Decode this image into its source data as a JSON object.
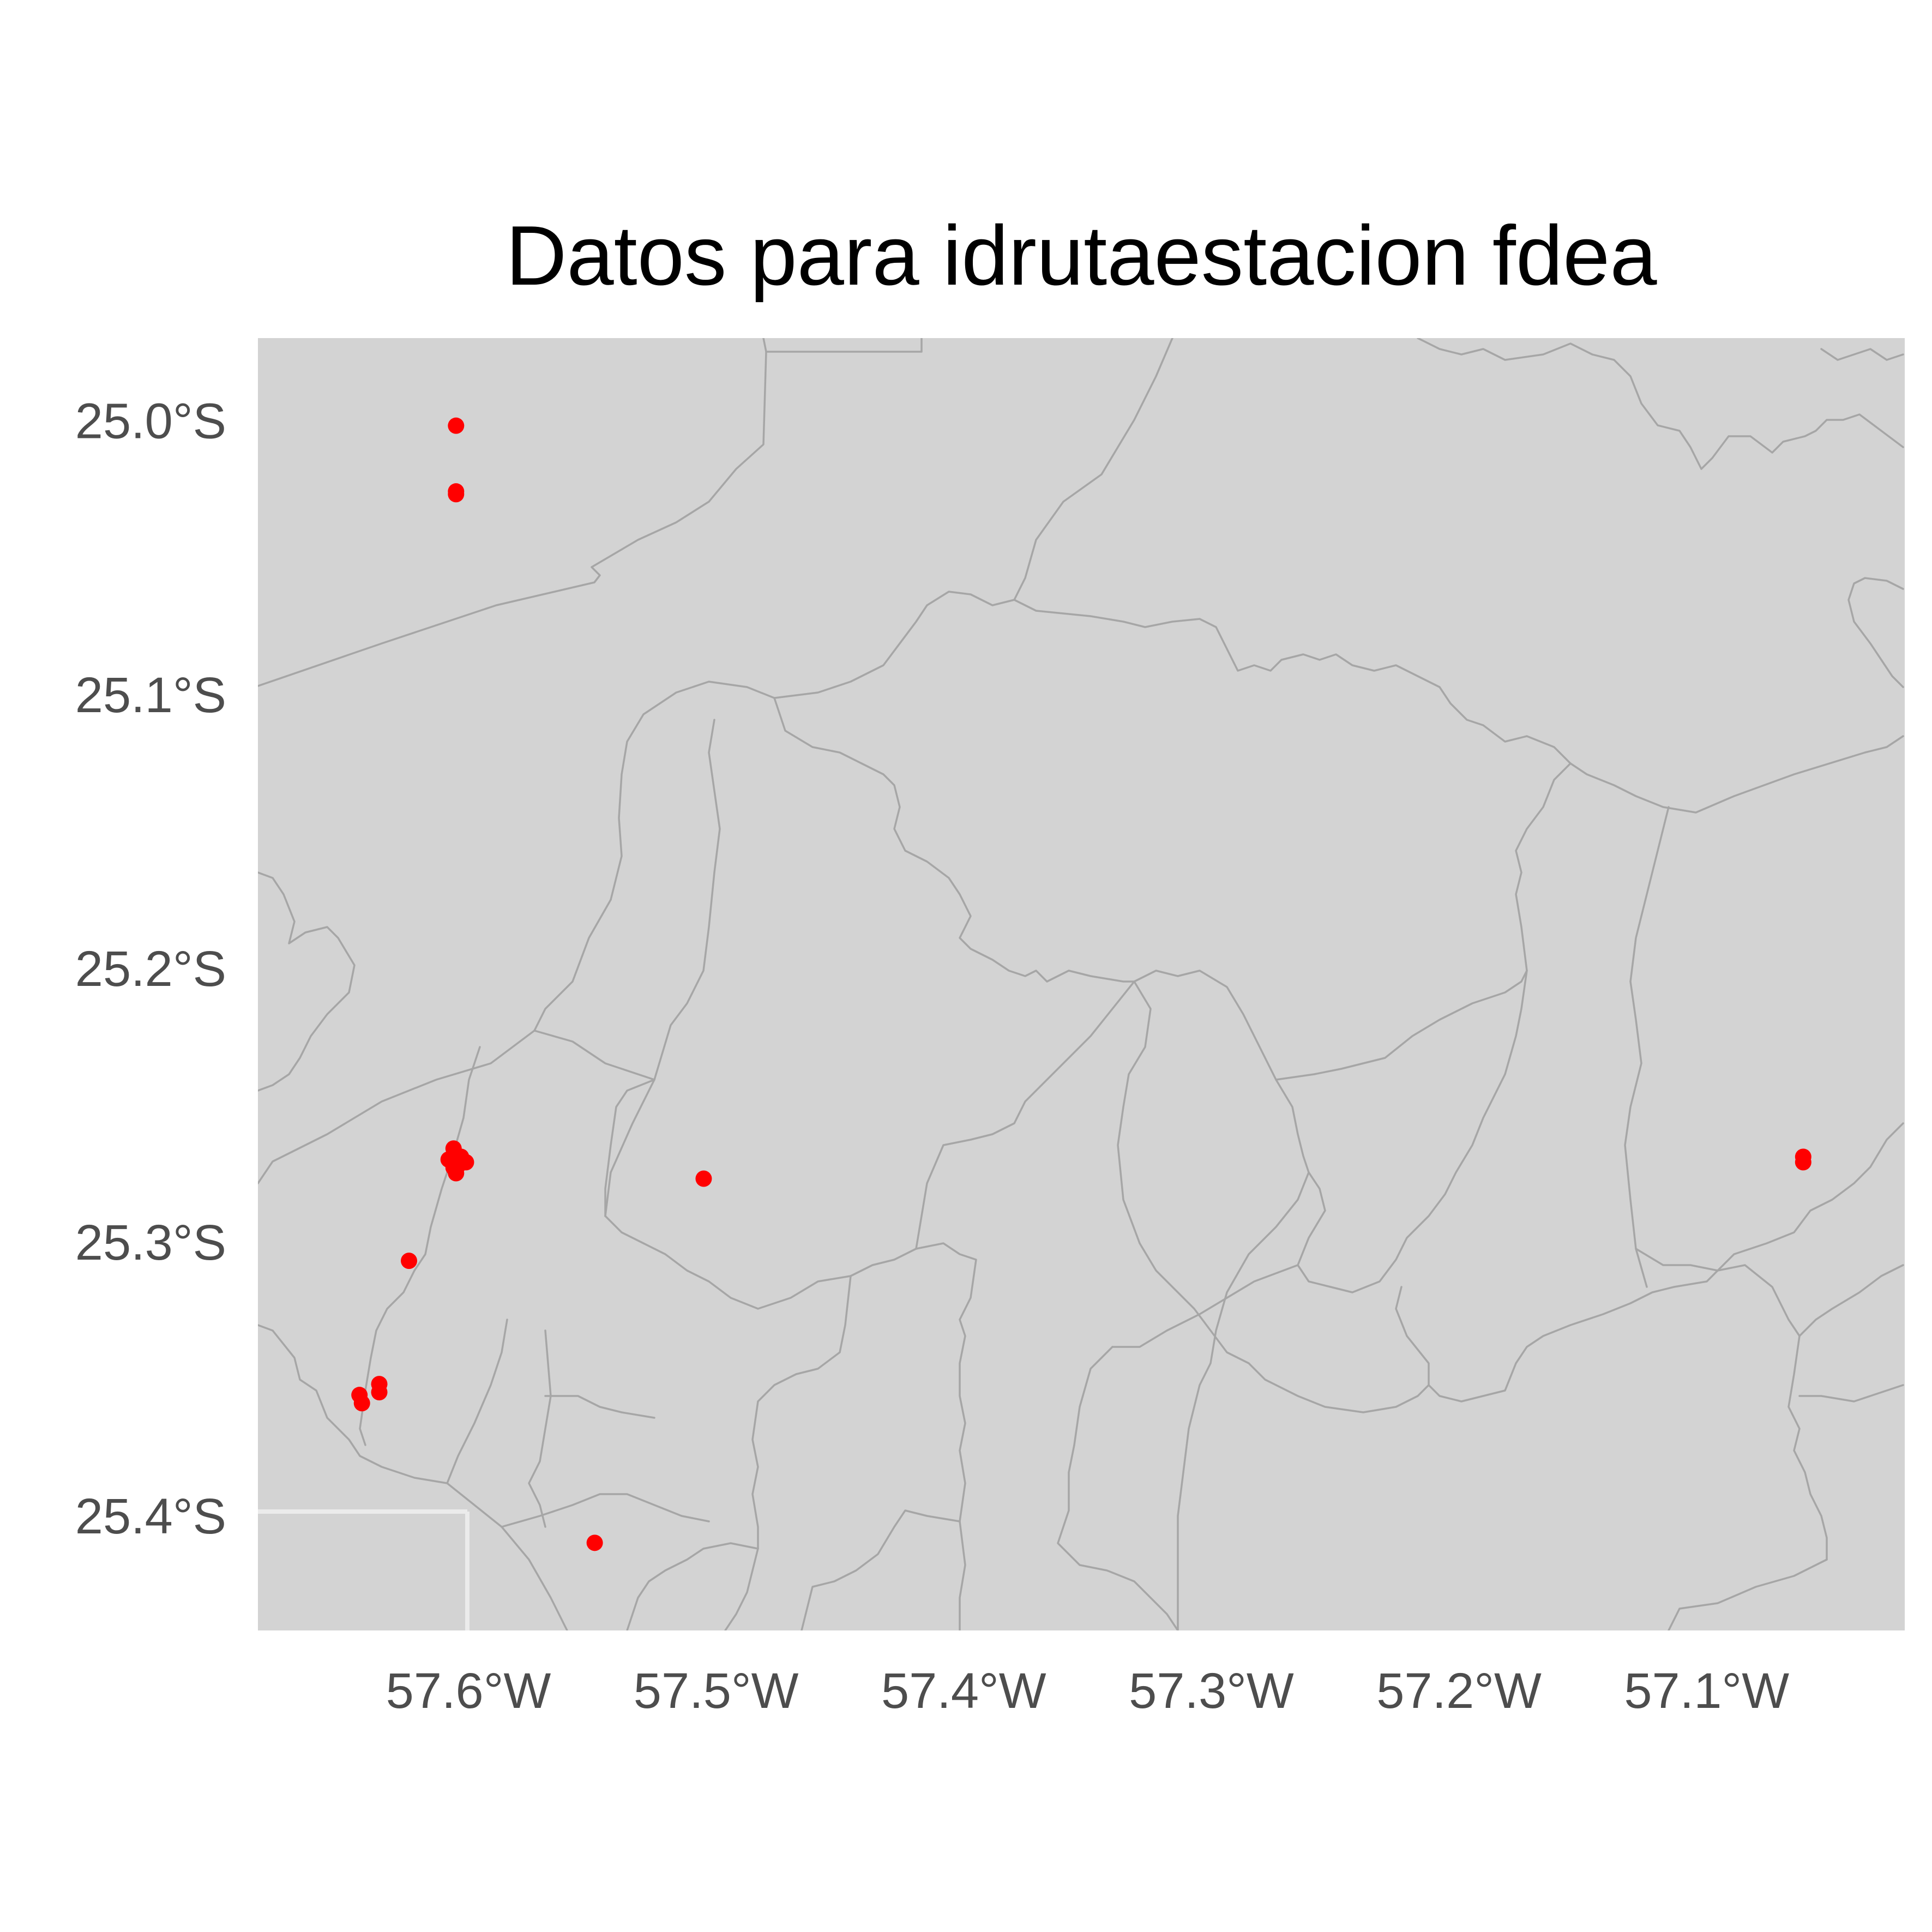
{
  "title": "Datos para idrutaestacion fdea",
  "colors": {
    "land": "#d3d3d3",
    "boundary": "#a6a6a6",
    "point": "#ff0000",
    "grid": "#ebebeb",
    "tick_text": "#4d4d4d",
    "title_text": "#000000"
  },
  "chart_data": {
    "type": "scatter",
    "title": "Datos para idrutaestacion fdea",
    "xlabel": "",
    "ylabel": "",
    "x_ticks": [
      {
        "value": -57.6,
        "label": "57.6°W"
      },
      {
        "value": -57.5,
        "label": "57.5°W"
      },
      {
        "value": -57.4,
        "label": "57.4°W"
      },
      {
        "value": -57.3,
        "label": "57.3°W"
      },
      {
        "value": -57.2,
        "label": "57.2°W"
      },
      {
        "value": -57.1,
        "label": "57.1°W"
      }
    ],
    "y_ticks": [
      {
        "value": -25.0,
        "label": "25.0°S"
      },
      {
        "value": -25.1,
        "label": "25.1°S"
      },
      {
        "value": -25.2,
        "label": "25.2°S"
      },
      {
        "value": -25.3,
        "label": "25.3°S"
      },
      {
        "value": -25.4,
        "label": "25.4°S"
      }
    ],
    "xlim": [
      -57.685,
      -57.02
    ],
    "ylim": [
      -25.442,
      -24.97
    ],
    "grid": true,
    "series": [
      {
        "points": [
          {
            "x": -57.605,
            "y": -25.002
          },
          {
            "x": -57.605,
            "y": -25.026
          },
          {
            "x": -57.605,
            "y": -25.027
          },
          {
            "x": -57.606,
            "y": -25.266
          },
          {
            "x": -57.608,
            "y": -25.27
          },
          {
            "x": -57.603,
            "y": -25.269
          },
          {
            "x": -57.601,
            "y": -25.271
          },
          {
            "x": -57.606,
            "y": -25.273
          },
          {
            "x": -57.605,
            "y": -25.275
          },
          {
            "x": -57.604,
            "y": -25.272
          },
          {
            "x": -57.505,
            "y": -25.277
          },
          {
            "x": -57.624,
            "y": -25.307
          },
          {
            "x": -57.644,
            "y": -25.356
          },
          {
            "x": -57.643,
            "y": -25.359
          },
          {
            "x": -57.636,
            "y": -25.352
          },
          {
            "x": -57.636,
            "y": -25.355
          },
          {
            "x": -57.549,
            "y": -25.41
          },
          {
            "x": -57.061,
            "y": -25.269
          },
          {
            "x": -57.061,
            "y": -25.271
          }
        ]
      }
    ]
  }
}
